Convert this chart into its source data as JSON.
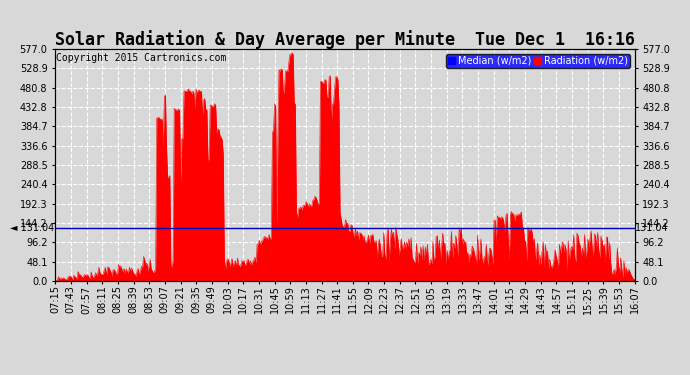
{
  "title": "Solar Radiation & Day Average per Minute  Tue Dec 1  16:16",
  "copyright": "Copyright 2015 Cartronics.com",
  "legend_median_label": "Median (w/m2)",
  "legend_radiation_label": "Radiation (w/m2)",
  "median_line_value": 131.04,
  "median_label": "131.04",
  "y_tick_values": [
    0.0,
    48.1,
    96.2,
    144.2,
    192.3,
    240.4,
    288.5,
    336.6,
    384.7,
    432.8,
    480.8,
    528.9,
    577.0
  ],
  "y_tick_labels": [
    "0.0",
    "48.1",
    "96.2",
    "144.2",
    "192.3",
    "240.4",
    "288.5",
    "336.6",
    "384.7",
    "432.8",
    "480.8",
    "528.9",
    "577.0"
  ],
  "ylim": [
    0,
    577.0
  ],
  "background_color": "#d8d8d8",
  "plot_bg_color": "#d8d8d8",
  "bar_color": "#ff0000",
  "median_line_color": "#0000bb",
  "grid_color": "#ffffff",
  "title_fontsize": 12,
  "copyright_fontsize": 7,
  "tick_label_fontsize": 7,
  "x_tick_labels": [
    "07:15",
    "07:43",
    "07:57",
    "08:11",
    "08:25",
    "08:39",
    "08:53",
    "09:07",
    "09:21",
    "09:35",
    "09:49",
    "10:03",
    "10:17",
    "10:31",
    "10:45",
    "10:59",
    "11:13",
    "11:27",
    "11:41",
    "11:55",
    "12:09",
    "12:23",
    "12:37",
    "12:51",
    "13:05",
    "13:19",
    "13:33",
    "13:47",
    "14:01",
    "14:15",
    "14:29",
    "14:43",
    "14:57",
    "15:11",
    "15:25",
    "15:39",
    "15:53",
    "16:07"
  ]
}
